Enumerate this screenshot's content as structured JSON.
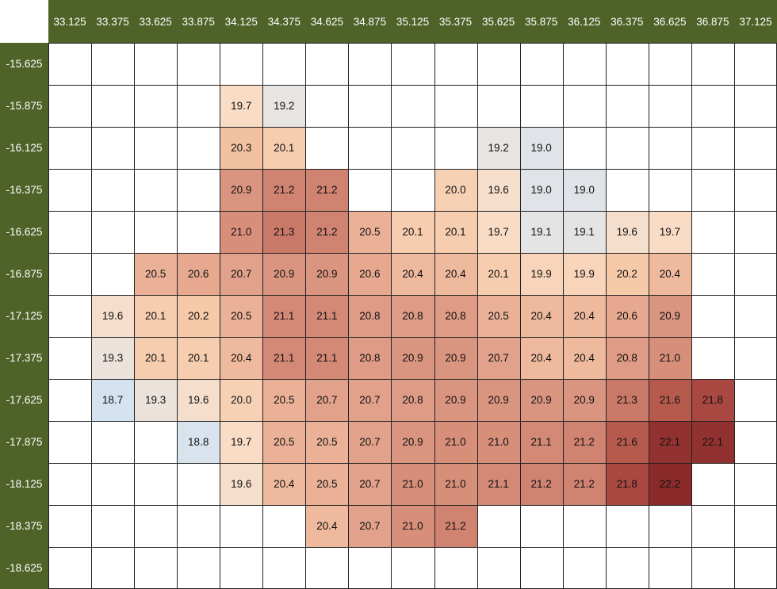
{
  "colors": {
    "header_bg": "#4f6228",
    "header_text": "#ffffff",
    "gridline": "#222222",
    "scale": [
      "#d5e3f1",
      "#e8e4e2",
      "#f8dcc6",
      "#f6c9a8",
      "#e2a18a",
      "#cf8370",
      "#b05046",
      "#8b2a2a"
    ]
  },
  "chart_data": {
    "type": "heatmap",
    "title": "",
    "xlabel": "",
    "ylabel": "",
    "x": [
      "33.125",
      "33.375",
      "33.625",
      "33.875",
      "34.125",
      "34.375",
      "34.625",
      "34.875",
      "35.125",
      "35.375",
      "35.625",
      "35.875",
      "36.125",
      "36.375",
      "36.625",
      "36.875",
      "37.125"
    ],
    "y": [
      "-15.625",
      "-15.875",
      "-16.125",
      "-16.375",
      "-16.625",
      "-16.875",
      "-17.125",
      "-17.375",
      "-17.625",
      "-17.875",
      "-18.125",
      "-18.375",
      "-18.625"
    ],
    "values": [
      [
        null,
        null,
        null,
        null,
        null,
        null,
        null,
        null,
        null,
        null,
        null,
        null,
        null,
        null,
        null,
        null,
        null
      ],
      [
        null,
        null,
        null,
        null,
        19.7,
        19.2,
        null,
        null,
        null,
        null,
        null,
        null,
        null,
        null,
        null,
        null,
        null
      ],
      [
        null,
        null,
        null,
        null,
        20.3,
        20.1,
        null,
        null,
        null,
        null,
        19.2,
        19.0,
        null,
        null,
        null,
        null,
        null
      ],
      [
        null,
        null,
        null,
        null,
        20.9,
        21.2,
        21.2,
        null,
        null,
        20.0,
        19.6,
        19.0,
        19.0,
        null,
        null,
        null,
        null
      ],
      [
        null,
        null,
        null,
        null,
        21.0,
        21.3,
        21.2,
        20.5,
        20.1,
        20.1,
        19.7,
        19.1,
        19.1,
        19.6,
        19.7,
        null,
        null
      ],
      [
        null,
        null,
        20.5,
        20.6,
        20.7,
        20.9,
        20.9,
        20.6,
        20.4,
        20.4,
        20.1,
        19.9,
        19.9,
        20.2,
        20.4,
        null,
        null
      ],
      [
        null,
        19.6,
        20.1,
        20.2,
        20.5,
        21.1,
        21.1,
        20.8,
        20.8,
        20.8,
        20.5,
        20.4,
        20.4,
        20.6,
        20.9,
        null,
        null
      ],
      [
        null,
        19.3,
        20.1,
        20.1,
        20.4,
        21.1,
        21.1,
        20.8,
        20.9,
        20.9,
        20.7,
        20.4,
        20.4,
        20.8,
        21.0,
        null,
        null
      ],
      [
        null,
        18.7,
        19.3,
        19.6,
        20.0,
        20.5,
        20.7,
        20.7,
        20.8,
        20.9,
        20.9,
        20.9,
        20.9,
        21.3,
        21.6,
        21.8,
        null
      ],
      [
        null,
        null,
        null,
        18.8,
        19.7,
        20.5,
        20.5,
        20.7,
        20.9,
        21.0,
        21.0,
        21.1,
        21.2,
        21.6,
        22.1,
        22.1,
        null
      ],
      [
        null,
        null,
        null,
        null,
        19.6,
        20.4,
        20.5,
        20.7,
        21.0,
        21.0,
        21.1,
        21.2,
        21.2,
        21.8,
        22.2,
        null,
        null
      ],
      [
        null,
        null,
        null,
        null,
        null,
        null,
        20.4,
        20.7,
        21.0,
        21.2,
        null,
        null,
        null,
        null,
        null,
        null,
        null
      ],
      [
        null,
        null,
        null,
        null,
        null,
        null,
        null,
        null,
        null,
        null,
        null,
        null,
        null,
        null,
        null,
        null,
        null
      ]
    ],
    "value_format": "0.0",
    "grid": true,
    "legend": "none"
  }
}
